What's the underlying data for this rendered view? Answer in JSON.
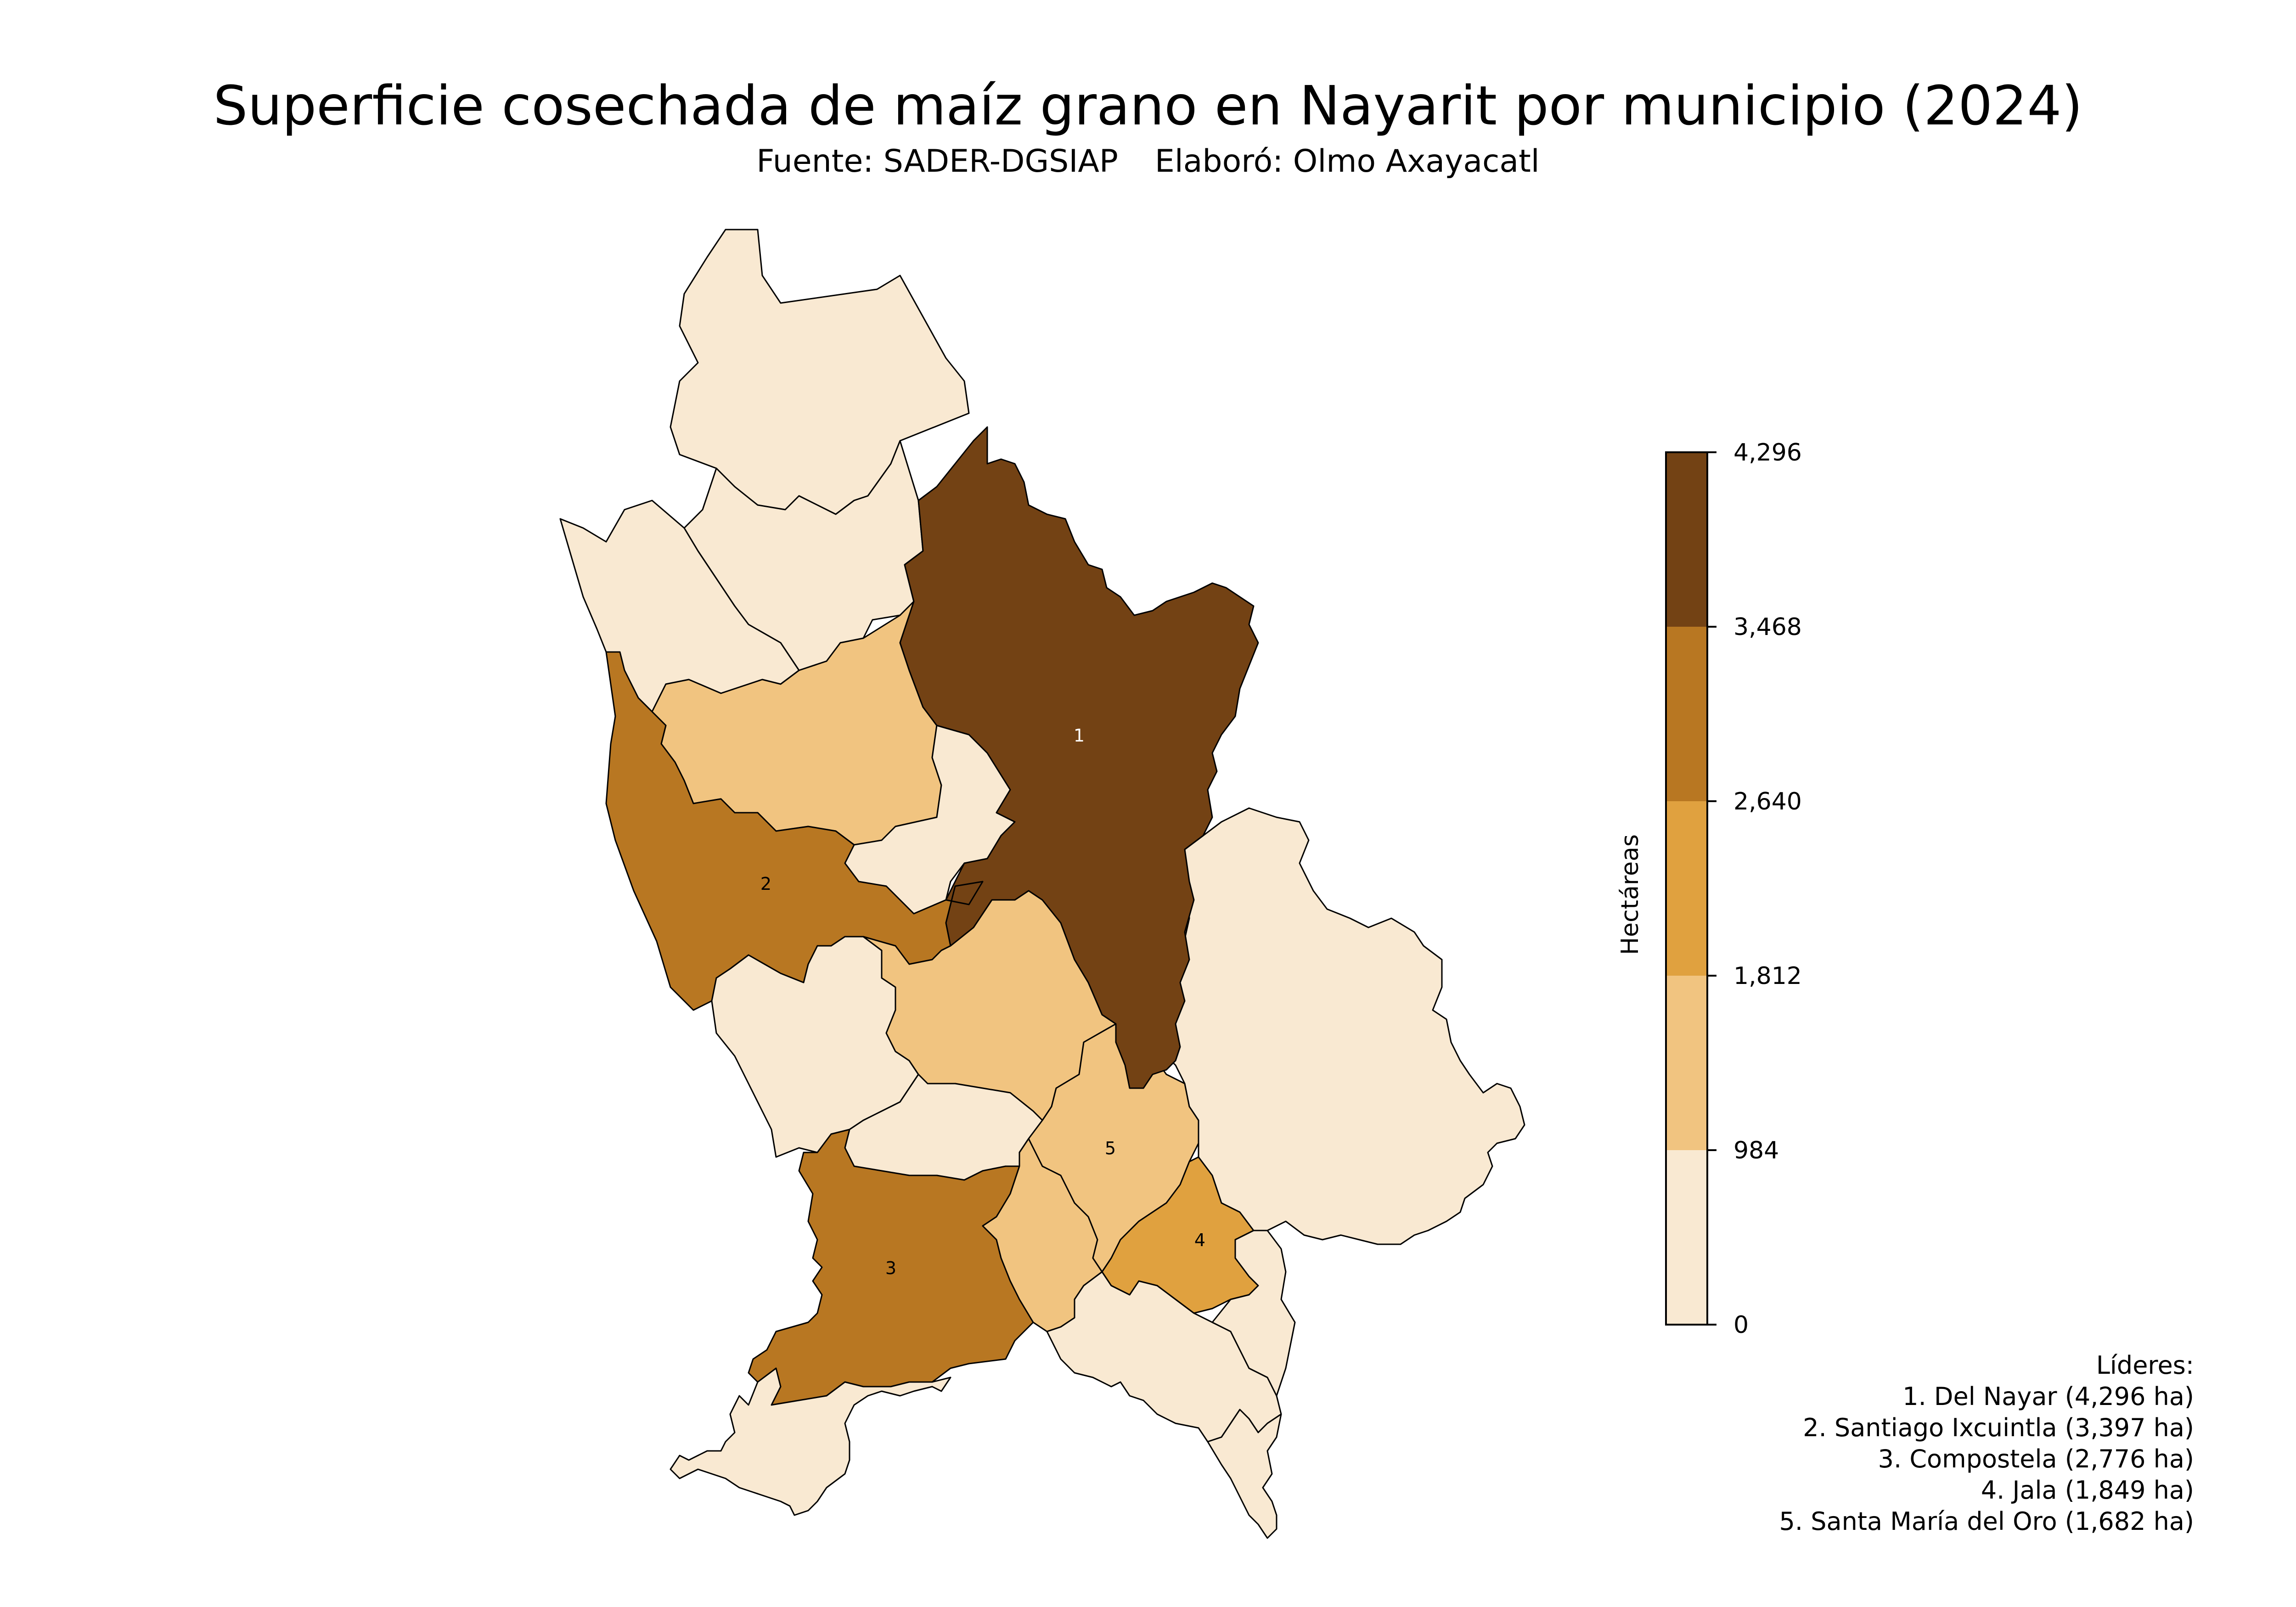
{
  "title": "Superficie cosechada de maíz grano en Nayarit por municipio (2024)",
  "source": "Fuente: SADER-DGSIAP",
  "author": "Elaboró: Olmo Axayacatl",
  "colorbar": {
    "title": "Hectáreas",
    "ticks": [
      "4,296",
      "3,468",
      "2,640",
      "1,812",
      "984",
      "0"
    ],
    "bins": [
      0,
      984,
      1812,
      2640,
      3468,
      4296
    ],
    "colors": [
      "#f9e9d2",
      "#f1c480",
      "#e0a13f",
      "#b87722",
      "#734214"
    ]
  },
  "municipalities": [
    {
      "name": "Del Nayar",
      "ha": 4296,
      "rank": "1"
    },
    {
      "name": "Santiago Ixcuintla",
      "ha": 3397,
      "rank": "2"
    },
    {
      "name": "Compostela",
      "ha": 2776,
      "rank": "3"
    },
    {
      "name": "Jala",
      "ha": 1849,
      "rank": "4"
    },
    {
      "name": "Santa María del Oro",
      "ha": 1682,
      "rank": "5"
    }
  ],
  "leaders": {
    "title": "Líderes:",
    "items": [
      "1. Del Nayar (4,296 ha)",
      "2. Santiago Ixcuintla (3,397 ha)",
      "3. Compostela (2,776 ha)",
      "4. Jala (1,849 ha)",
      "5. Santa María del Oro (1,682 ha)"
    ]
  }
}
